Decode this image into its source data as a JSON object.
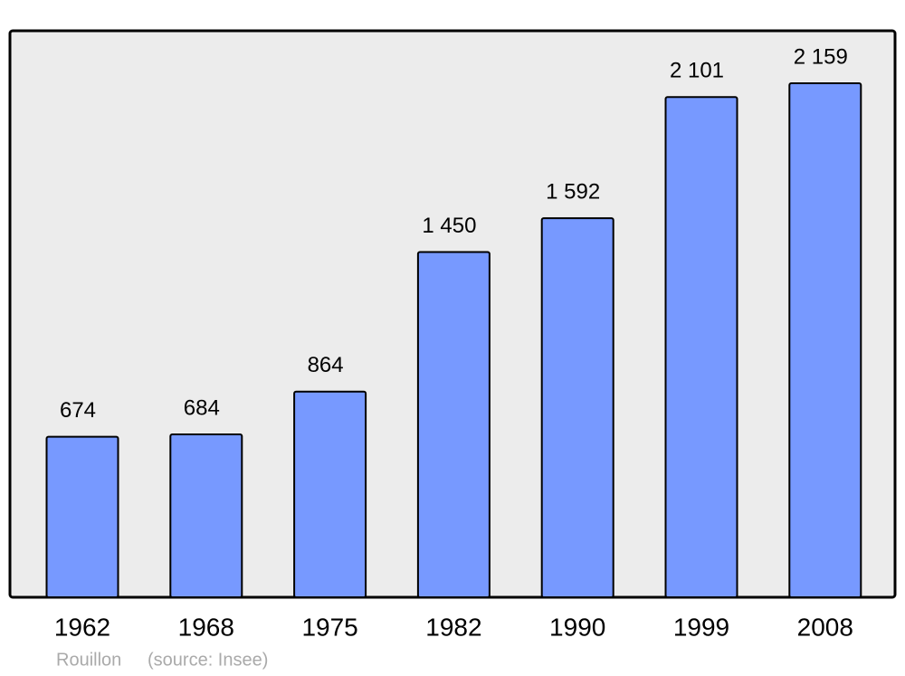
{
  "chart_data": {
    "type": "bar",
    "categories": [
      "1962",
      "1968",
      "1975",
      "1982",
      "1990",
      "1999",
      "2008"
    ],
    "values": [
      674,
      684,
      864,
      1450,
      1592,
      2101,
      2159
    ],
    "value_labels": [
      "674",
      "684",
      "864",
      "1 450",
      "1 592",
      "2 101",
      "2 159"
    ],
    "color": "#7799ff",
    "caption": "Rouillon",
    "source": "(source: Insee)"
  }
}
